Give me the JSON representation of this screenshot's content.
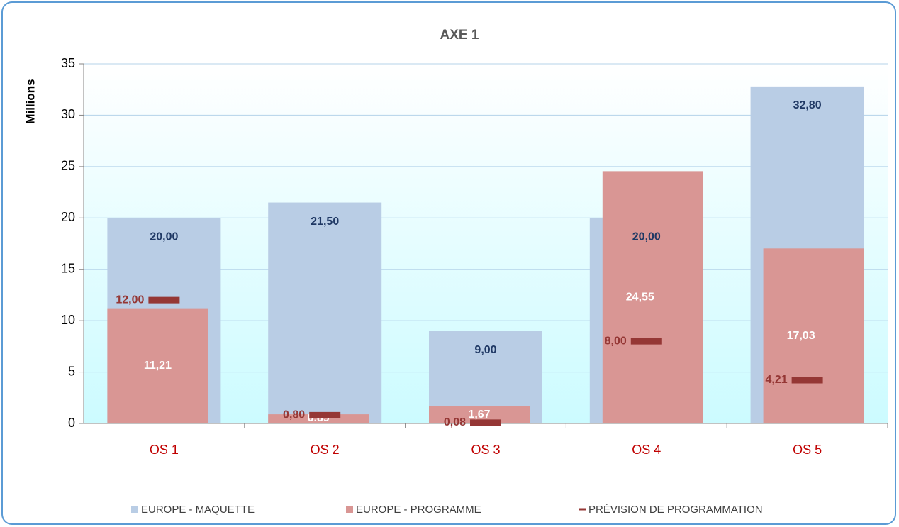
{
  "chart_data": {
    "type": "bar",
    "title": "AXE 1",
    "y_axis_label": "Millions",
    "categories": [
      "OS 1",
      "OS 2",
      "OS 3",
      "OS 4",
      "OS 5"
    ],
    "series": [
      {
        "name": "EUROPE - MAQUETTE",
        "color": "#b9cde5",
        "values": [
          20,
          21.5,
          9,
          20,
          32.8
        ],
        "value_labels": [
          "20,00",
          "21,50",
          "9,00",
          "20,00",
          "32,80"
        ]
      },
      {
        "name": "EUROPE - PROGRAMME",
        "color": "#d99694",
        "values": [
          11.21,
          0.89,
          1.67,
          24.55,
          17.03
        ],
        "value_labels": [
          "11,21",
          "0.89",
          "1,67",
          "24,55",
          "17,03"
        ]
      },
      {
        "name": "PRÉVISION DE PROGRAMMATION",
        "color": "#953735",
        "values": [
          12,
          0.8,
          0.08,
          8,
          4.21
        ],
        "value_labels": [
          "12,00",
          "0,80",
          "0,08",
          "8,00",
          "4,21"
        ]
      }
    ],
    "ylim": [
      0,
      35
    ],
    "yticks": [
      0,
      5,
      10,
      15,
      20,
      25,
      30,
      35
    ],
    "grid": true,
    "legend": "bottom"
  }
}
